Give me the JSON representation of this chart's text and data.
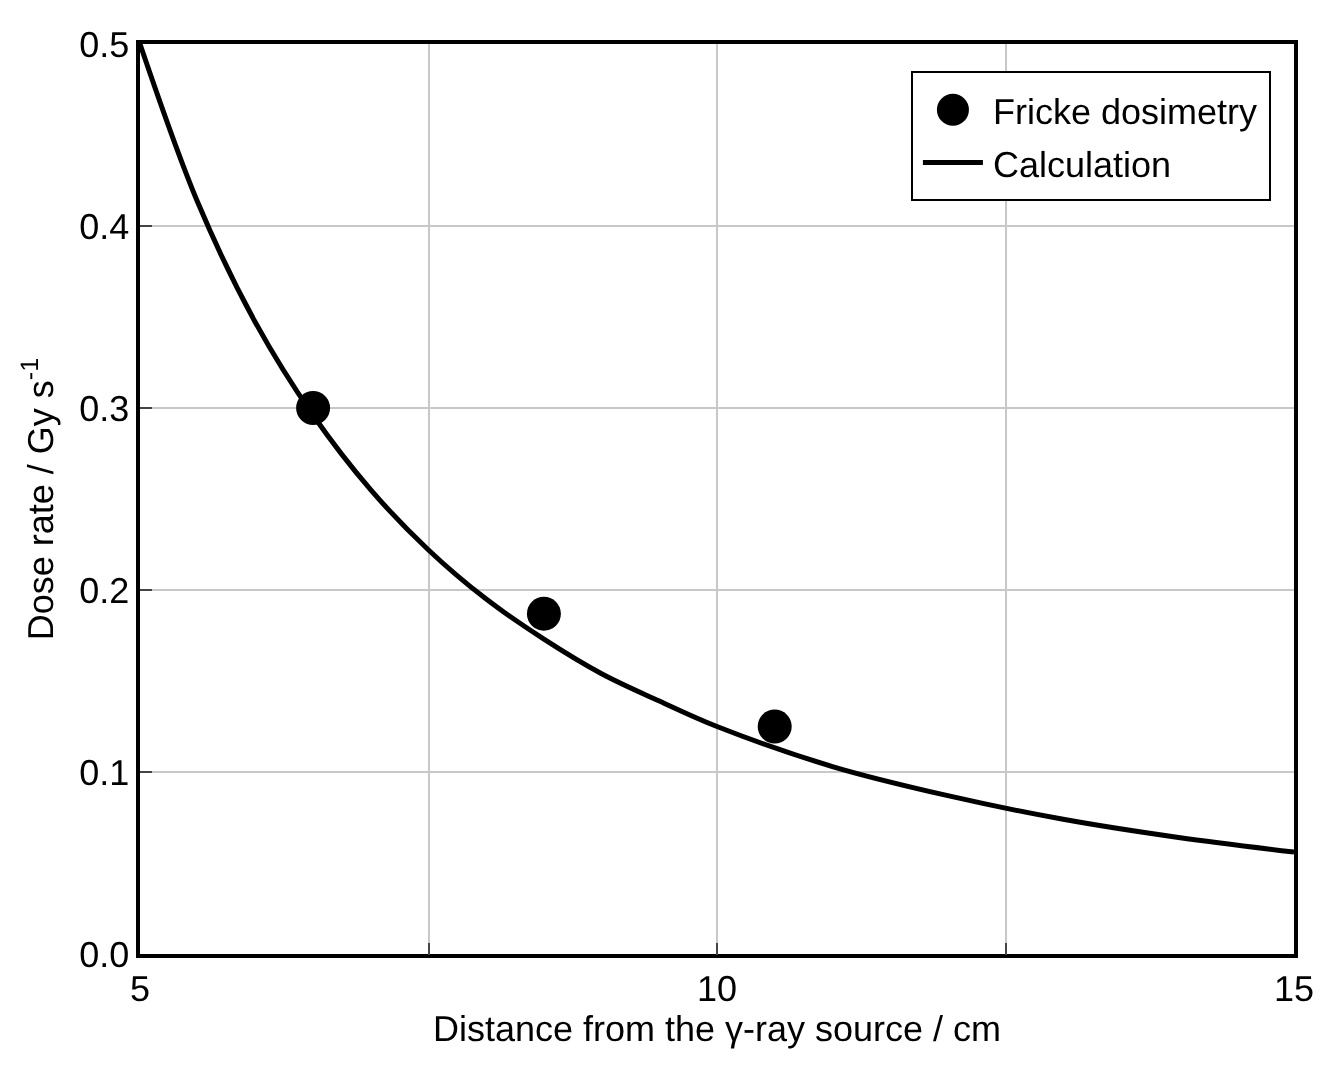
{
  "chart_data": {
    "type": "scatter",
    "xlabel": "Distance from the γ-ray source / cm",
    "ylabel": "Dose rate / Gy s$^{-1}$",
    "series": [
      {
        "name": "Fricke dosimetry",
        "marker": "circle",
        "color": "#000000",
        "x": [
          6.5,
          8.5,
          10.5
        ],
        "values": [
          0.3,
          0.187,
          0.125
        ]
      },
      {
        "name": "Calculation",
        "type": "line",
        "marker": "none",
        "line_style": "solid",
        "color": "#000000",
        "x": [
          5,
          5.5,
          6,
          6.5,
          7,
          7.5,
          8,
          8.5,
          9,
          9.5,
          10,
          11,
          12,
          13,
          14,
          15
        ],
        "values": [
          0.5,
          0.413,
          0.347,
          0.296,
          0.255,
          0.222,
          0.195,
          0.173,
          0.154,
          0.139,
          0.125,
          0.103,
          0.087,
          0.074,
          0.064,
          0.056
        ]
      }
    ],
    "xlim": [
      5,
      15
    ],
    "xticks": [
      5,
      {
        "value": 7.5,
        "label": null
      },
      10,
      {
        "value": 12.5,
        "label": null
      },
      15
    ],
    "ylim": [
      0,
      0.5
    ],
    "yticks": [
      {
        "value": 0,
        "label": "0.0"
      },
      0.1,
      0.2,
      0.3,
      0.4,
      0.5
    ],
    "grid": true,
    "legend": "top right"
  }
}
